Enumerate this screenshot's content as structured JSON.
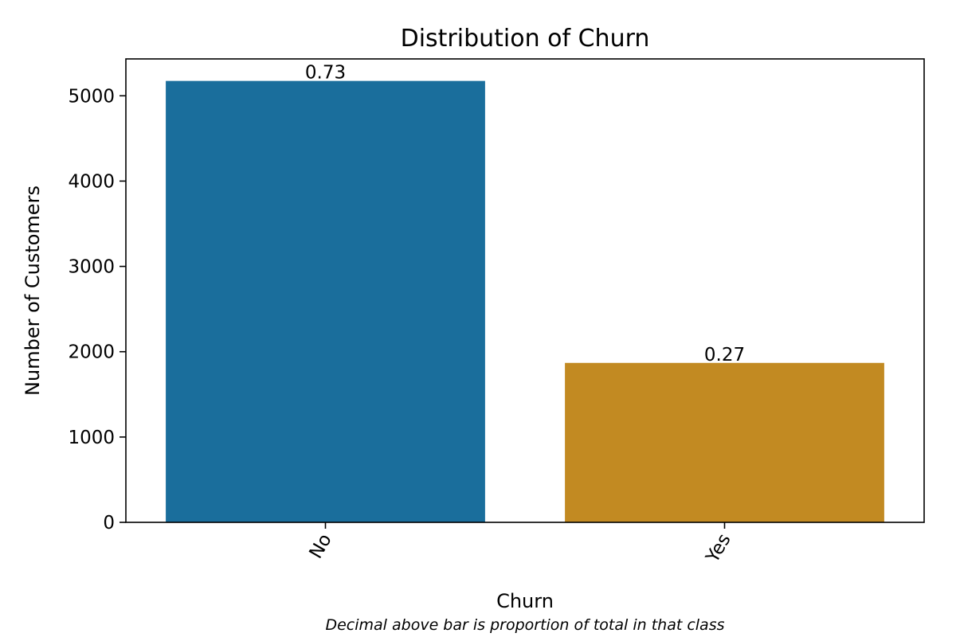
{
  "chart_data": {
    "type": "bar",
    "title": "Distribution of Churn",
    "xlabel": "Churn",
    "ylabel": "Number of Customers",
    "caption": "Decimal above bar is proportion of total in that class",
    "categories": [
      "No",
      "Yes"
    ],
    "values": [
      5174,
      1869
    ],
    "bar_labels": [
      "0.73",
      "0.27"
    ],
    "colors": [
      "#1a6e9c",
      "#c28a22"
    ],
    "yticks": [
      0,
      1000,
      2000,
      3000,
      4000,
      5000
    ],
    "ylim": [
      0,
      5432
    ],
    "grid": false,
    "legend": "none"
  }
}
